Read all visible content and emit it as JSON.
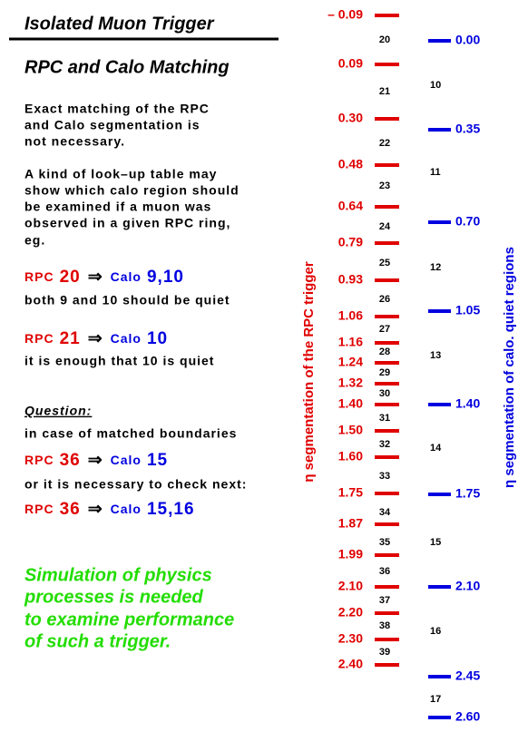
{
  "header": {
    "title": "Isolated Muon Trigger",
    "subtitle": "RPC and Calo Matching"
  },
  "paragraphs": [
    [
      "Exact matching of the RPC",
      "and Calo segmentation is",
      "not necessary."
    ],
    [
      "A kind of look–up table may",
      "show which calo region should",
      "be examined if a muon was",
      "observed in a given RPC ring,",
      "eg."
    ]
  ],
  "examples": [
    {
      "rpc_label": "RPC",
      "rpc": "20",
      "arrow": "⇒",
      "calo_label": "Calo",
      "calo": "9,10",
      "note": "both 9 and 10 should be quiet"
    },
    {
      "rpc_label": "RPC",
      "rpc": "21",
      "arrow": "⇒",
      "calo_label": "Calo",
      "calo": "10",
      "note": "it is enough that 10 is quiet"
    }
  ],
  "question": {
    "title": "Question:",
    "intro": "in case of matched boundaries",
    "example1": {
      "rpc_label": "RPC",
      "rpc": "36",
      "arrow": "⇒",
      "calo_label": "Calo",
      "calo": "15"
    },
    "alt": "or it is necessary to check next:",
    "example2": {
      "rpc_label": "RPC",
      "rpc": "36",
      "arrow": "⇒",
      "calo_label": "Calo",
      "calo": "15,16"
    }
  },
  "conclusion": [
    "Simulation of physics",
    "processes is needed",
    "to examine performance",
    "of such a trigger."
  ],
  "diagram": {
    "rpc_axis_title": "η segmentation of the RPC trigger",
    "rpc_boundaries": [
      "– 0.09",
      "0.09",
      "0.30",
      "0.48",
      "0.64",
      "0.79",
      "0.93",
      "1.06",
      "1.16",
      "1.24",
      "1.32",
      "1.40",
      "1.50",
      "1.60",
      "1.75",
      "1.87",
      "1.99",
      "2.10",
      "2.20",
      "2.30",
      "2.40"
    ],
    "rpc_rings": [
      "20",
      "21",
      "22",
      "23",
      "24",
      "25",
      "26",
      "27",
      "28",
      "29",
      "30",
      "31",
      "32",
      "33",
      "34",
      "35",
      "36",
      "37",
      "38",
      "39"
    ],
    "calo_axis_title": "η segmentation of calo. quiet regions",
    "calo_boundaries": [
      "0.00",
      "0.35",
      "0.70",
      "1.05",
      "1.40",
      "1.75",
      "2.10",
      "2.45",
      "2.60"
    ],
    "calo_regions": [
      "10",
      "11",
      "12",
      "13",
      "14",
      "15",
      "16",
      "17"
    ]
  }
}
